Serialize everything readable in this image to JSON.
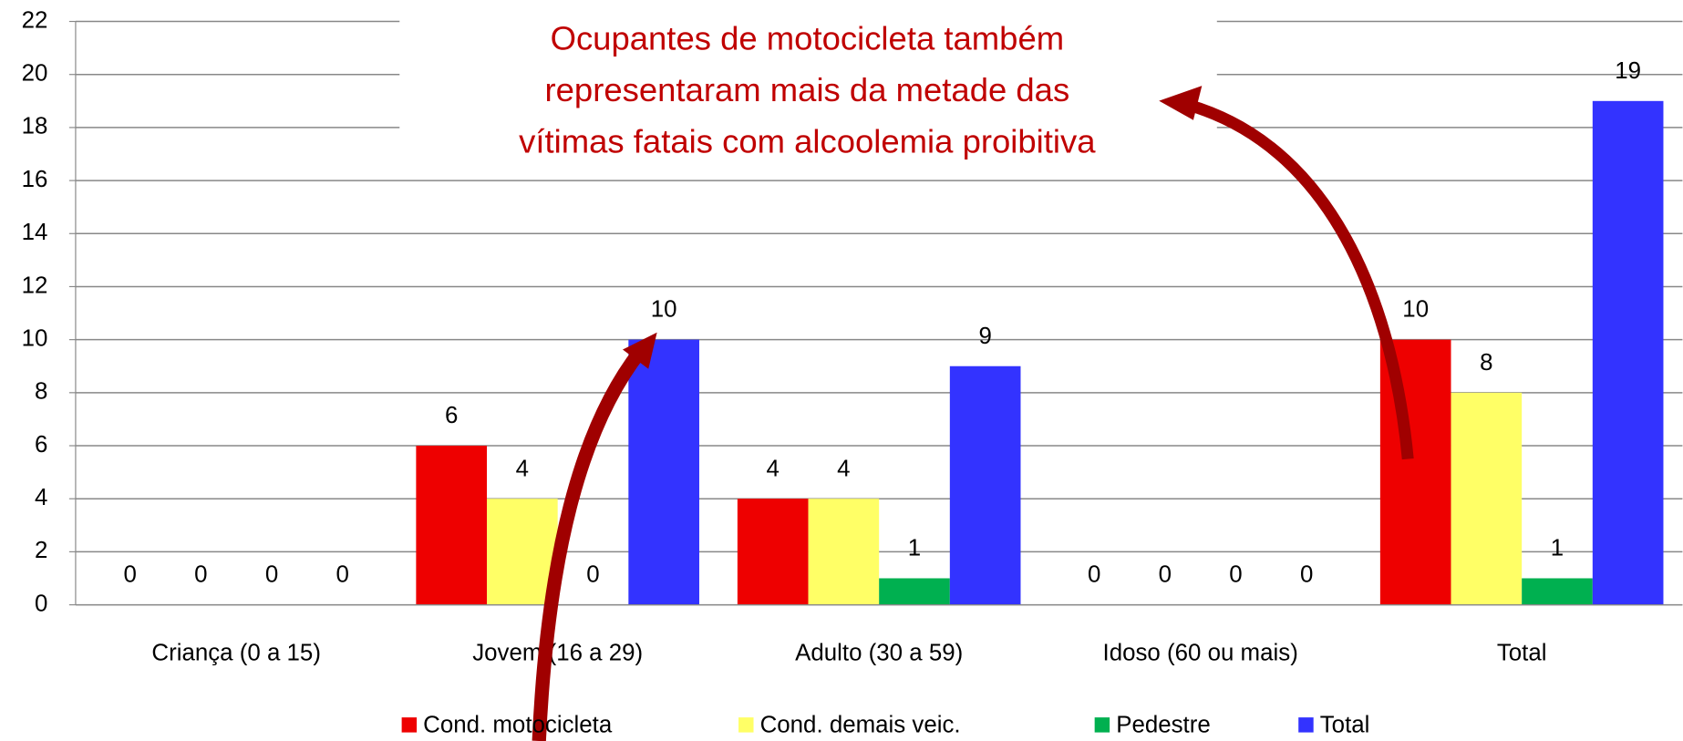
{
  "chart_data": {
    "type": "bar",
    "categories": [
      "Criança (0 a 15)",
      "Jovem (16 a 29)",
      "Adulto (30 a 59)",
      "Idoso (60 ou mais)",
      "Total"
    ],
    "series": [
      {
        "name": "Cond. motocicleta",
        "color": "#ee0000",
        "values": [
          0,
          6,
          4,
          0,
          10
        ]
      },
      {
        "name": "Cond. demais veic.",
        "color": "#ffff66",
        "values": [
          0,
          4,
          4,
          0,
          8
        ]
      },
      {
        "name": "Pedestre",
        "color": "#00b050",
        "values": [
          0,
          0,
          1,
          0,
          1
        ]
      },
      {
        "name": "Total",
        "color": "#3333ff",
        "values": [
          0,
          10,
          9,
          0,
          19
        ]
      }
    ],
    "ylim": [
      0,
      22
    ],
    "yticks": [
      0,
      2,
      4,
      6,
      8,
      10,
      12,
      14,
      16,
      18,
      20,
      22
    ],
    "grid": true,
    "legend": "bottom",
    "annotation": [
      "Ocupantes de motocicleta também",
      "representaram mais da metade das",
      "vítimas fatais com alcoolemia proibitiva"
    ]
  }
}
